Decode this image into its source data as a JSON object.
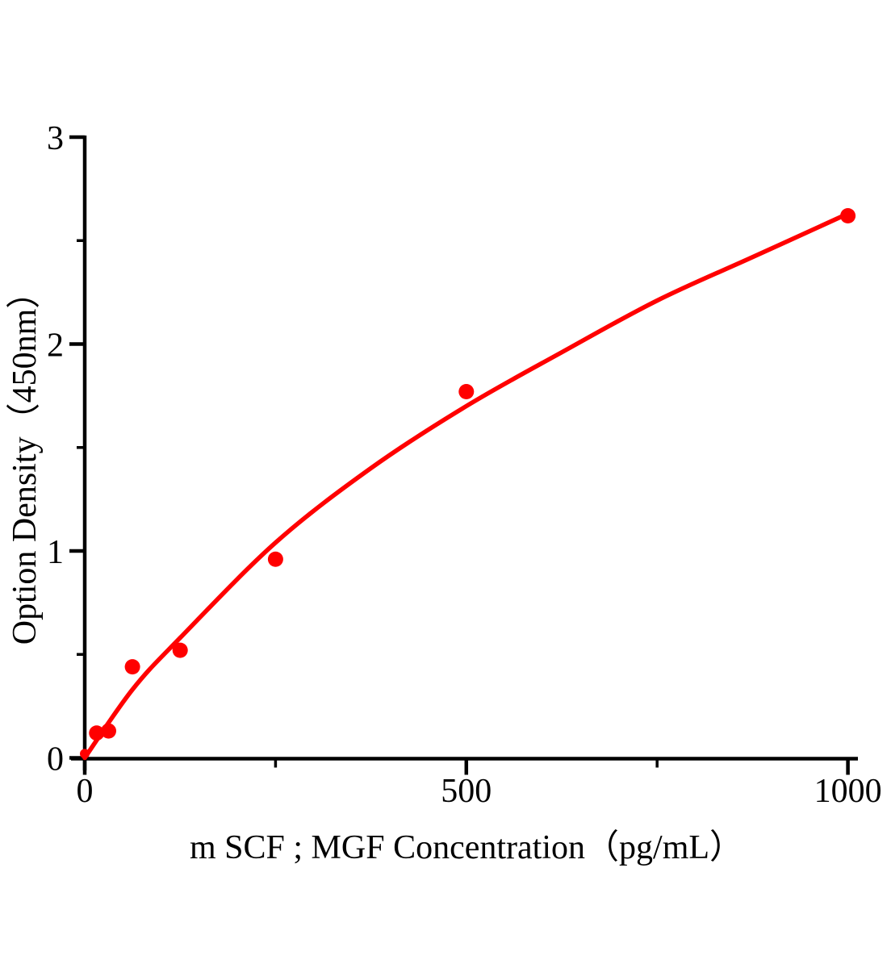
{
  "chart_data": {
    "type": "scatter",
    "title": "",
    "xlabel": "m SCF ; MGF Concentration（pg/mL）",
    "ylabel": "Option Density（450nm）",
    "xlim": [
      0,
      1000
    ],
    "ylim": [
      0,
      3
    ],
    "x_major_ticks": [
      0,
      500,
      1000
    ],
    "x_minor_ticks": [
      250,
      750
    ],
    "y_major_ticks": [
      0,
      1,
      2,
      3
    ],
    "y_minor_ticks": [
      0.5,
      1.5,
      2.5
    ],
    "grid": false,
    "legend": "none",
    "axis_color": "#000000",
    "marker_color": "#ff0000",
    "line_color": "#ff0000",
    "points": [
      {
        "x": 0,
        "y": 0.02
      },
      {
        "x": 15.6,
        "y": 0.12
      },
      {
        "x": 31.2,
        "y": 0.13
      },
      {
        "x": 62.5,
        "y": 0.44
      },
      {
        "x": 125,
        "y": 0.52
      },
      {
        "x": 250,
        "y": 0.96
      },
      {
        "x": 500,
        "y": 1.77
      },
      {
        "x": 1000,
        "y": 2.62
      }
    ],
    "fit_curve": [
      {
        "x": 0,
        "y": 0.0
      },
      {
        "x": 62.5,
        "y": 0.33
      },
      {
        "x": 125,
        "y": 0.58
      },
      {
        "x": 250,
        "y": 1.04
      },
      {
        "x": 375,
        "y": 1.4
      },
      {
        "x": 500,
        "y": 1.7
      },
      {
        "x": 625,
        "y": 1.96
      },
      {
        "x": 750,
        "y": 2.21
      },
      {
        "x": 875,
        "y": 2.42
      },
      {
        "x": 1000,
        "y": 2.63
      }
    ]
  }
}
